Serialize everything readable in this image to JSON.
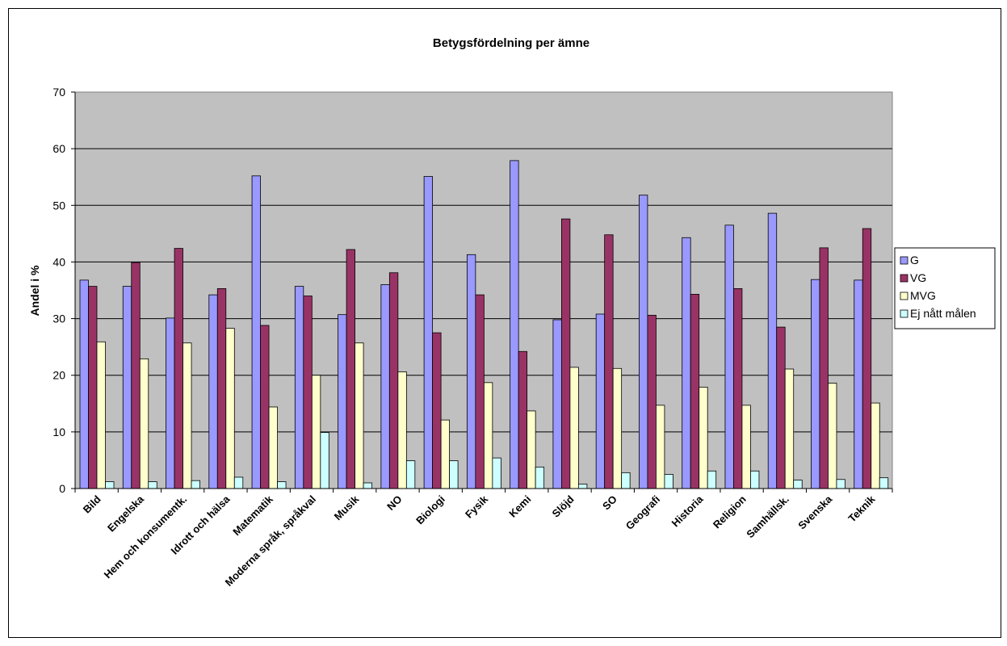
{
  "chart_data": {
    "type": "bar",
    "title": "Betygsfördelning per ämne",
    "xlabel": "",
    "ylabel": "Andel i %",
    "ylim": [
      0,
      70
    ],
    "yticks": [
      0,
      10,
      20,
      30,
      40,
      50,
      60,
      70
    ],
    "grid": true,
    "legend": "right",
    "categories": [
      "Bild",
      "Engelska",
      "Hem och konsumentk.",
      "Idrott och hälsa",
      "Matematik",
      "Moderna språk, språkval",
      "Musik",
      "NO",
      "Biologi",
      "Fysik",
      "Kemi",
      "Slöjd",
      "SO",
      "Geografi",
      "Historia",
      "Religion",
      "Samhällsk.",
      "Svenska",
      "Teknik"
    ],
    "series": [
      {
        "name": "G",
        "color": "#9999ff",
        "values": [
          36.8,
          35.7,
          30.1,
          34.2,
          55.2,
          35.7,
          30.7,
          36.0,
          55.1,
          41.3,
          57.9,
          29.8,
          30.8,
          51.8,
          44.3,
          46.5,
          48.6,
          36.9,
          36.8
        ]
      },
      {
        "name": "VG",
        "color": "#993366",
        "values": [
          35.7,
          39.9,
          42.4,
          35.3,
          28.8,
          34.0,
          42.2,
          38.1,
          27.5,
          34.2,
          24.2,
          47.6,
          44.8,
          30.6,
          34.3,
          35.3,
          28.5,
          42.5,
          45.9
        ]
      },
      {
        "name": "MVG",
        "color": "#ffffcc",
        "values": [
          25.9,
          22.9,
          25.7,
          28.3,
          14.4,
          20.0,
          25.7,
          20.6,
          12.1,
          18.7,
          13.7,
          21.4,
          21.2,
          14.7,
          17.9,
          14.7,
          21.1,
          18.6,
          15.1
        ]
      },
      {
        "name": "Ej nått målen",
        "color": "#ccffff",
        "values": [
          1.2,
          1.2,
          1.4,
          2.0,
          1.2,
          9.9,
          1.0,
          4.9,
          4.9,
          5.4,
          3.8,
          0.8,
          2.8,
          2.5,
          3.1,
          3.1,
          1.5,
          1.6,
          1.9
        ]
      }
    ],
    "colors": {
      "plot_background": "#c0c0c0",
      "gridline": "#000000"
    }
  }
}
